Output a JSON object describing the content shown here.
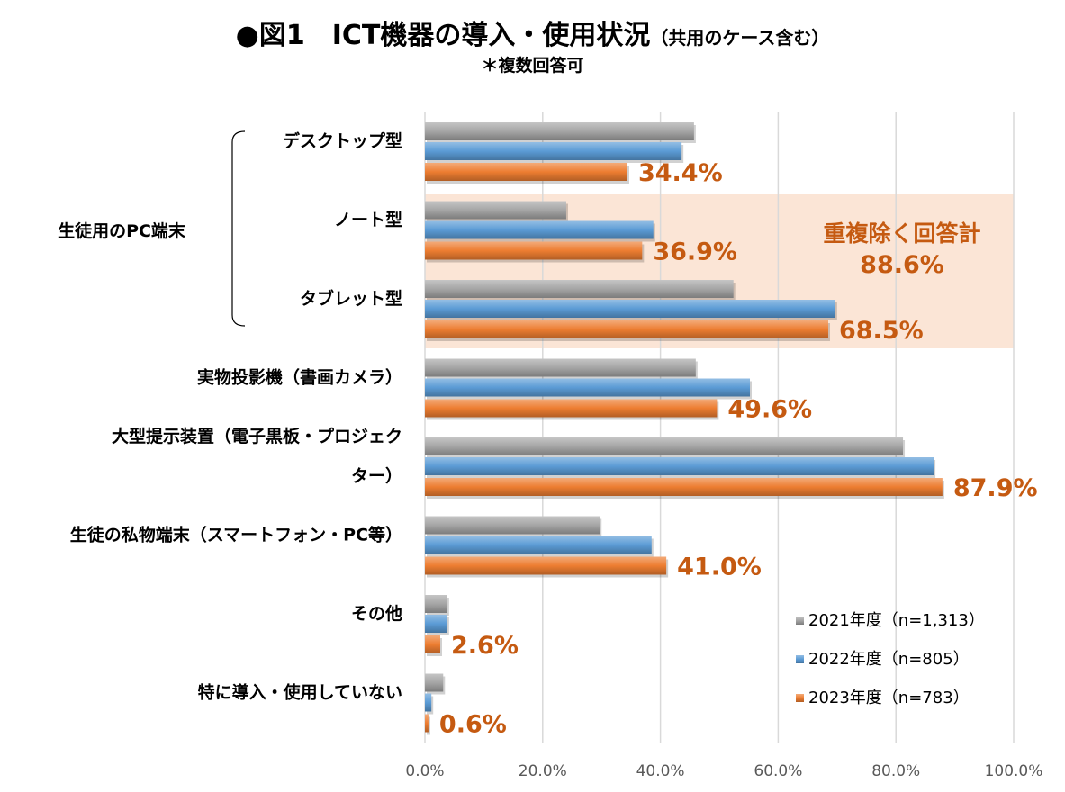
{
  "title": {
    "main": "●図1　ICT機器の導入・使用状況",
    "sub": "（共用のケース含む）",
    "note": "＊複数回答可"
  },
  "chart_data": {
    "type": "bar",
    "orientation": "horizontal",
    "categories": [
      "デスクトップ型",
      "ノート型",
      "タブレット型",
      "実物投影機（書画カメラ）",
      "大型提示装置（電子黒板・プロジェクター）",
      "生徒の私物端末（スマートフォン・PC等）",
      "その他",
      "特に導入・使用していない"
    ],
    "category_label_lines": [
      [
        "デスクトップ型"
      ],
      [
        "ノート型"
      ],
      [
        "タブレット型"
      ],
      [
        "実物投影機（書画カメラ）"
      ],
      [
        "大型提示装置（電子黒板・プロジェク",
        "ター）"
      ],
      [
        "生徒の私物端末（スマートフォン・PC等）"
      ],
      [
        "その他"
      ],
      [
        "特に導入・使用していない"
      ]
    ],
    "group_label": "生徒用のPC端末",
    "group_members": [
      "デスクトップ型",
      "ノート型",
      "タブレット型"
    ],
    "series": [
      {
        "name": "2021年度（n=1,313）",
        "color": "#a5a5a5",
        "values": [
          45.7,
          24.0,
          52.4,
          46.0,
          81.2,
          29.7,
          3.8,
          3.1
        ]
      },
      {
        "name": "2022年度（n=805）",
        "color": "#5b9bd5",
        "values": [
          43.6,
          38.8,
          69.7,
          55.2,
          86.4,
          38.5,
          3.8,
          1.1
        ]
      },
      {
        "name": "2023年度（n=783）",
        "color": "#ed7d31",
        "values": [
          34.4,
          36.9,
          68.5,
          49.6,
          87.9,
          41.0,
          2.6,
          0.6
        ]
      }
    ],
    "data_labels": [
      "34.4%",
      "36.9%",
      "68.5%",
      "49.6%",
      "87.9%",
      "41.0%",
      "2.6%",
      "0.6%"
    ],
    "annotation": {
      "line1": "重複除く回答計",
      "line2": "88.6%",
      "highlight_color": "#fbe5d6"
    },
    "xlim": [
      0,
      100
    ],
    "x_ticks": [
      "0.0%",
      "20.0%",
      "40.0%",
      "60.0%",
      "80.0%",
      "100.0%"
    ],
    "grid": true,
    "legend_position": "bottom-right",
    "label_color": "#c55a11"
  }
}
